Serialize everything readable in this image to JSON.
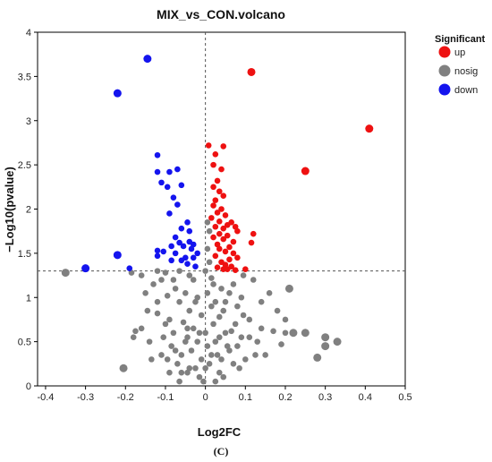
{
  "chart_data": {
    "type": "scatter",
    "title": "MIX_vs_CON.volcano",
    "xlabel": "Log2FC",
    "ylabel": "−Log10(pvalue)",
    "xlim": [
      -0.42,
      0.5
    ],
    "ylim": [
      0,
      4
    ],
    "xticks": [
      "-0.4",
      "-0.3",
      "-0.2",
      "-0.1",
      "0",
      "0.1",
      "0.2",
      "0.3",
      "0.4",
      "0.5"
    ],
    "xtick_values": [
      -0.4,
      -0.3,
      -0.2,
      -0.1,
      0,
      0.1,
      0.2,
      0.3,
      0.4,
      0.5
    ],
    "yticks": [
      "0",
      "0.5",
      "1",
      "1.5",
      "2",
      "2.5",
      "3",
      "3.5",
      "4"
    ],
    "ytick_values": [
      0,
      0.5,
      1,
      1.5,
      2,
      2.5,
      3,
      3.5,
      4
    ],
    "threshold_x": 0,
    "threshold_y": 1.3,
    "legend_title": "Significant",
    "legend_position": "right",
    "grid": false,
    "caption": "(C)",
    "series": [
      {
        "name": "up",
        "color": "#ee1111",
        "points": [
          [
            0.115,
            3.55
          ],
          [
            0.41,
            2.91
          ],
          [
            0.25,
            2.43
          ],
          [
            0.008,
            2.72
          ],
          [
            0.025,
            2.62
          ],
          [
            0.045,
            2.71
          ],
          [
            0.02,
            2.5
          ],
          [
            0.04,
            2.45
          ],
          [
            0.03,
            2.32
          ],
          [
            0.02,
            2.25
          ],
          [
            0.035,
            2.2
          ],
          [
            0.045,
            2.15
          ],
          [
            0.025,
            2.1
          ],
          [
            0.02,
            2.04
          ],
          [
            0.04,
            2.0
          ],
          [
            0.03,
            1.96
          ],
          [
            0.05,
            1.93
          ],
          [
            0.015,
            1.9
          ],
          [
            0.035,
            1.86
          ],
          [
            0.055,
            1.82
          ],
          [
            0.025,
            1.8
          ],
          [
            0.045,
            1.78
          ],
          [
            0.065,
            1.85
          ],
          [
            0.075,
            1.8
          ],
          [
            0.08,
            1.75
          ],
          [
            0.035,
            1.72
          ],
          [
            0.055,
            1.7
          ],
          [
            0.12,
            1.72
          ],
          [
            0.02,
            1.68
          ],
          [
            0.045,
            1.66
          ],
          [
            0.07,
            1.63
          ],
          [
            0.115,
            1.62
          ],
          [
            0.03,
            1.6
          ],
          [
            0.06,
            1.57
          ],
          [
            0.035,
            1.55
          ],
          [
            0.05,
            1.52
          ],
          [
            0.07,
            1.5
          ],
          [
            0.08,
            1.45
          ],
          [
            0.025,
            1.47
          ],
          [
            0.06,
            1.43
          ],
          [
            0.04,
            1.4
          ],
          [
            0.05,
            1.37
          ],
          [
            0.065,
            1.35
          ],
          [
            0.03,
            1.34
          ],
          [
            0.045,
            1.32
          ],
          [
            0.075,
            1.31
          ],
          [
            0.1,
            1.32
          ],
          [
            0.055,
            1.32
          ]
        ]
      },
      {
        "name": "nosig",
        "color": "#808080",
        "points": [
          [
            -0.35,
            1.28
          ],
          [
            -0.205,
            0.2
          ],
          [
            -0.185,
            1.28
          ],
          [
            -0.16,
            1.25
          ],
          [
            -0.13,
            1.15
          ],
          [
            -0.175,
            0.62
          ],
          [
            -0.18,
            0.55
          ],
          [
            -0.16,
            0.65
          ],
          [
            -0.145,
            0.85
          ],
          [
            -0.12,
            0.95
          ],
          [
            -0.105,
            0.55
          ],
          [
            -0.09,
            0.75
          ],
          [
            -0.075,
            1.1
          ],
          [
            -0.06,
            0.35
          ],
          [
            -0.045,
            0.15
          ],
          [
            -0.135,
            0.3
          ],
          [
            -0.12,
            0.82
          ],
          [
            -0.1,
            0.7
          ],
          [
            -0.08,
            0.6
          ],
          [
            -0.065,
            0.95
          ],
          [
            -0.05,
            1.05
          ],
          [
            -0.04,
            0.85
          ],
          [
            -0.03,
            0.65
          ],
          [
            -0.02,
            0.5
          ],
          [
            -0.01,
            0.3
          ],
          [
            -0.15,
            1.05
          ],
          [
            -0.11,
            1.2
          ],
          [
            -0.095,
            1.02
          ],
          [
            -0.085,
            0.45
          ],
          [
            -0.07,
            0.25
          ],
          [
            -0.055,
            0.72
          ],
          [
            -0.045,
            0.55
          ],
          [
            -0.035,
            0.4
          ],
          [
            -0.025,
            0.2
          ],
          [
            -0.015,
            0.1
          ],
          [
            -0.005,
            0.05
          ],
          [
            -0.095,
            0.3
          ],
          [
            -0.06,
            0.15
          ],
          [
            -0.03,
            1.2
          ],
          [
            -0.02,
            1.0
          ],
          [
            -0.01,
            0.8
          ],
          [
            0.0,
            0.6
          ],
          [
            -0.075,
            0.4
          ],
          [
            -0.05,
            0.5
          ],
          [
            -0.04,
            0.2
          ],
          [
            0.005,
            0.45
          ],
          [
            0.01,
            0.25
          ],
          [
            0.015,
            0.9
          ],
          [
            0.02,
            0.7
          ],
          [
            0.025,
            0.5
          ],
          [
            0.03,
            0.35
          ],
          [
            0.035,
            0.15
          ],
          [
            0.04,
            1.1
          ],
          [
            0.045,
            0.85
          ],
          [
            0.05,
            0.6
          ],
          [
            0.06,
            0.4
          ],
          [
            0.07,
            0.25
          ],
          [
            0.08,
            0.9
          ],
          [
            0.09,
            0.55
          ],
          [
            0.1,
            0.3
          ],
          [
            0.11,
            0.75
          ],
          [
            0.13,
            0.5
          ],
          [
            0.15,
            0.35
          ],
          [
            0.16,
            1.05
          ],
          [
            0.18,
            0.85
          ],
          [
            0.2,
            0.75
          ],
          [
            0.21,
            1.1
          ],
          [
            0.3,
            0.55
          ],
          [
            0.3,
            0.45
          ],
          [
            0.33,
            0.5
          ],
          [
            0.28,
            0.32
          ],
          [
            0.25,
            0.6
          ],
          [
            0.22,
            0.6
          ],
          [
            0.19,
            0.47
          ],
          [
            0.2,
            0.6
          ],
          [
            0.17,
            0.62
          ],
          [
            0.14,
            0.95
          ],
          [
            0.12,
            1.2
          ],
          [
            0.095,
            1.25
          ],
          [
            0.07,
            1.15
          ],
          [
            0.005,
            1.85
          ],
          [
            0.01,
            1.75
          ],
          [
            0.005,
            1.55
          ],
          [
            0.01,
            1.4
          ],
          [
            0.0,
            1.3
          ],
          [
            0.015,
            1.22
          ],
          [
            0.02,
            1.15
          ],
          [
            0.005,
            1.05
          ],
          [
            0.025,
            0.95
          ],
          [
            0.035,
            0.78
          ],
          [
            0.055,
            0.45
          ],
          [
            0.065,
            0.62
          ],
          [
            0.075,
            0.7
          ],
          [
            0.085,
            0.2
          ],
          [
            0.045,
            0.1
          ],
          [
            0.025,
            0.05
          ],
          [
            0.015,
            0.35
          ],
          [
            0.0,
            0.2
          ],
          [
            -0.015,
            0.6
          ],
          [
            -0.025,
            0.95
          ],
          [
            -0.04,
            1.25
          ],
          [
            -0.065,
            1.3
          ],
          [
            -0.08,
            1.2
          ],
          [
            -0.1,
            1.28
          ],
          [
            -0.12,
            1.3
          ],
          [
            -0.14,
            0.5
          ],
          [
            -0.11,
            0.35
          ],
          [
            -0.09,
            0.15
          ],
          [
            -0.065,
            0.05
          ],
          [
            -0.045,
            0.65
          ],
          [
            0.035,
            0.55
          ],
          [
            0.04,
            0.3
          ],
          [
            0.05,
            0.95
          ],
          [
            0.06,
            1.05
          ],
          [
            0.09,
            1.0
          ],
          [
            0.11,
            0.55
          ],
          [
            0.125,
            0.35
          ],
          [
            0.14,
            0.65
          ],
          [
            0.095,
            0.8
          ],
          [
            0.08,
            0.45
          ]
        ]
      },
      {
        "name": "down",
        "color": "#1414ee",
        "points": [
          [
            -0.145,
            3.7
          ],
          [
            -0.22,
            3.31
          ],
          [
            -0.12,
            2.61
          ],
          [
            -0.07,
            2.45
          ],
          [
            -0.09,
            2.42
          ],
          [
            -0.12,
            2.42
          ],
          [
            -0.11,
            2.3
          ],
          [
            -0.095,
            2.25
          ],
          [
            -0.06,
            2.27
          ],
          [
            -0.08,
            2.13
          ],
          [
            -0.07,
            2.05
          ],
          [
            -0.09,
            1.95
          ],
          [
            -0.045,
            1.85
          ],
          [
            -0.06,
            1.78
          ],
          [
            -0.04,
            1.75
          ],
          [
            -0.075,
            1.68
          ],
          [
            -0.065,
            1.62
          ],
          [
            -0.04,
            1.63
          ],
          [
            -0.085,
            1.58
          ],
          [
            -0.055,
            1.58
          ],
          [
            -0.035,
            1.55
          ],
          [
            -0.12,
            1.53
          ],
          [
            -0.105,
            1.52
          ],
          [
            -0.075,
            1.5
          ],
          [
            -0.05,
            1.45
          ],
          [
            -0.03,
            1.45
          ],
          [
            -0.12,
            1.47
          ],
          [
            -0.085,
            1.42
          ],
          [
            -0.06,
            1.42
          ],
          [
            -0.045,
            1.38
          ],
          [
            -0.025,
            1.35
          ],
          [
            -0.22,
            1.48
          ],
          [
            -0.3,
            1.33
          ],
          [
            -0.19,
            1.33
          ],
          [
            -0.03,
            1.6
          ],
          [
            -0.02,
            1.5
          ]
        ]
      }
    ]
  }
}
